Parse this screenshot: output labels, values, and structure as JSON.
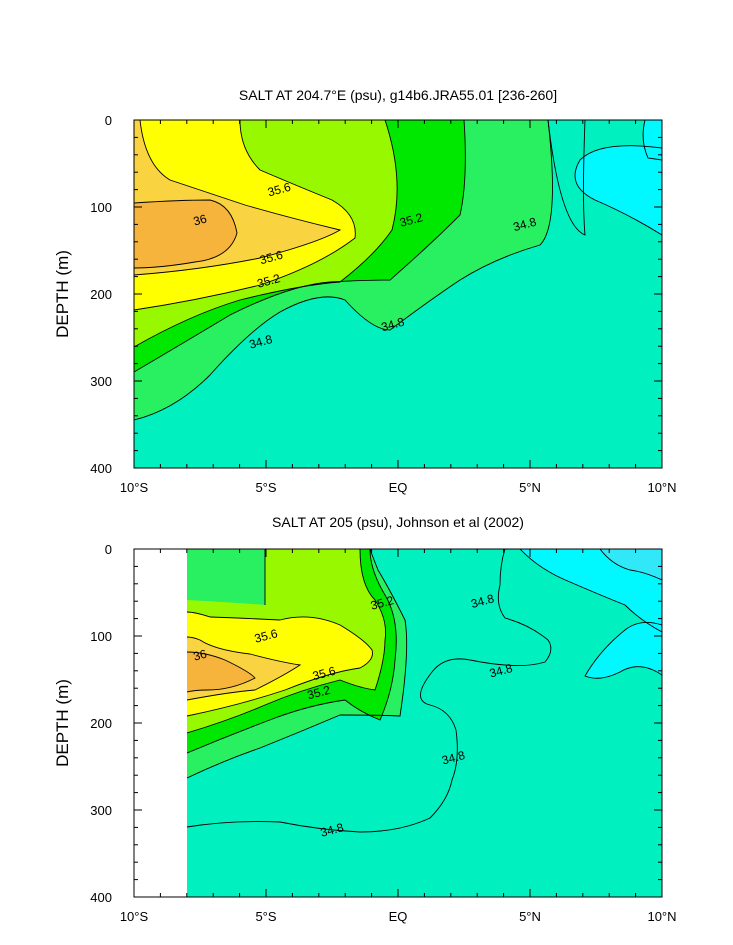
{
  "chart_data": [
    {
      "type": "contour",
      "title": "SALT AT 204.7°E (psu), g14b6.JRA55.01 [236-260]",
      "ylabel": "DEPTH (m)",
      "xlabel": "",
      "x_range": [
        -10,
        10
      ],
      "ylim": [
        0,
        400
      ],
      "y_inverted": true,
      "x_ticks": [
        {
          "value": -10,
          "label": "10°S"
        },
        {
          "value": -5,
          "label": "5°S"
        },
        {
          "value": 0,
          "label": "EQ"
        },
        {
          "value": 5,
          "label": "5°N"
        },
        {
          "value": 10,
          "label": "10°N"
        }
      ],
      "y_ticks": [
        0,
        100,
        200,
        300,
        400
      ],
      "contour_levels": [
        34.6,
        34.8,
        35.0,
        35.2,
        35.4,
        35.6,
        35.8,
        36.0
      ],
      "contour_labels": [
        {
          "text": "35.6",
          "x": -4.5,
          "y": 80
        },
        {
          "text": "36",
          "x": -7.5,
          "y": 115
        },
        {
          "text": "35.6",
          "x": -4.8,
          "y": 158
        },
        {
          "text": "35.2",
          "x": -4.9,
          "y": 185
        },
        {
          "text": "35.2",
          "x": 0.5,
          "y": 115
        },
        {
          "text": "34.8",
          "x": 4.8,
          "y": 120
        },
        {
          "text": "34.8",
          "x": -5.2,
          "y": 255
        },
        {
          "text": "34.8",
          "x": -0.2,
          "y": 235
        }
      ]
    },
    {
      "type": "contour",
      "title": "SALT AT 205 (psu), Johnson et al (2002)",
      "ylabel": "DEPTH (m)",
      "xlabel": "",
      "x_range": [
        -10,
        10
      ],
      "data_x_range": [
        -8,
        10
      ],
      "ylim": [
        0,
        400
      ],
      "y_inverted": true,
      "x_ticks": [
        {
          "value": -10,
          "label": "10°S"
        },
        {
          "value": -5,
          "label": "5°S"
        },
        {
          "value": 0,
          "label": "EQ"
        },
        {
          "value": 5,
          "label": "5°N"
        },
        {
          "value": 10,
          "label": "10°N"
        }
      ],
      "y_ticks": [
        0,
        100,
        200,
        300,
        400
      ],
      "contour_levels": [
        34.6,
        34.8,
        35.0,
        35.2,
        35.4,
        35.6,
        35.8,
        36.0
      ],
      "contour_labels": [
        {
          "text": "35.6",
          "x": -5,
          "y": 100
        },
        {
          "text": "36",
          "x": -7.5,
          "y": 122
        },
        {
          "text": "35.6",
          "x": -2.8,
          "y": 143
        },
        {
          "text": "35.2",
          "x": -3,
          "y": 165
        },
        {
          "text": "35.2",
          "x": -0.6,
          "y": 62
        },
        {
          "text": "34.8",
          "x": 3.2,
          "y": 60
        },
        {
          "text": "34.8",
          "x": 3.9,
          "y": 140
        },
        {
          "text": "34.8",
          "x": 2.1,
          "y": 240
        },
        {
          "text": "34.8",
          "x": -2.5,
          "y": 323
        }
      ]
    }
  ],
  "colors": {
    "c_gt36": "#f7b43c",
    "c_358": "#f9d340",
    "c_356": "#ffff00",
    "c_354": "#98f800",
    "c_352": "#00e800",
    "c_350": "#28f060",
    "c_348": "#00f0c0",
    "c_346": "#00f8ff"
  }
}
